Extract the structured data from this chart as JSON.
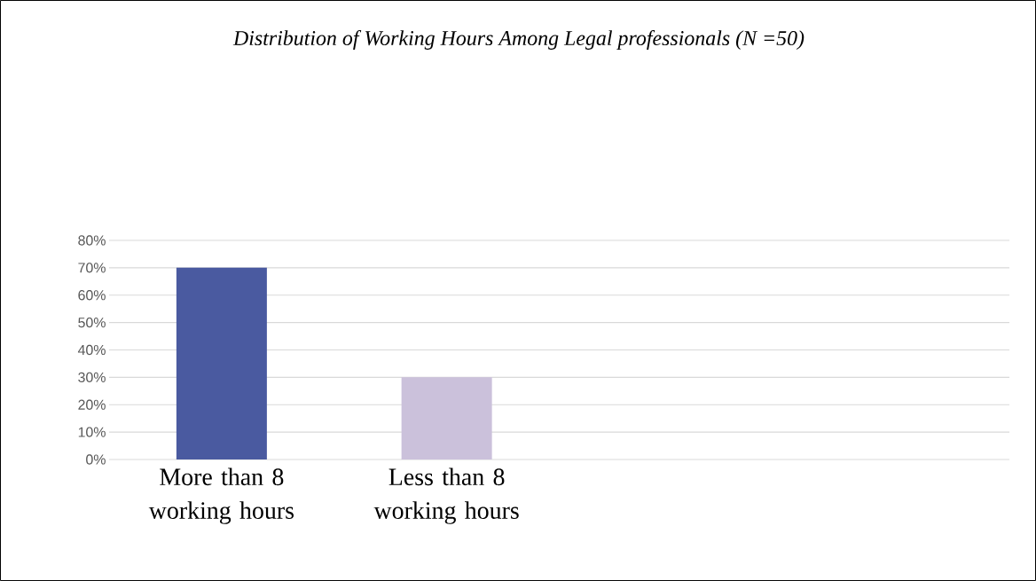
{
  "chart_data": {
    "type": "bar",
    "title": "Distribution of Working Hours Among Legal professionals (N =50)",
    "categories": [
      "More than 8 working hours",
      "Less than 8 working hours",
      null,
      null
    ],
    "values": [
      70,
      30,
      null,
      null
    ],
    "colors": [
      "#4a5aa0",
      "#cbc1db",
      "#4a5aa0",
      "#cbc1db"
    ],
    "ylim": [
      0,
      80
    ],
    "yticks": [
      {
        "value": 0,
        "label": "0%"
      },
      {
        "value": 10,
        "label": "10%"
      },
      {
        "value": 20,
        "label": "20%"
      },
      {
        "value": 30,
        "label": "30%"
      },
      {
        "value": 40,
        "label": "40%"
      },
      {
        "value": 50,
        "label": "50%"
      },
      {
        "value": 60,
        "label": "60%"
      },
      {
        "value": 70,
        "label": "70%"
      },
      {
        "value": 80,
        "label": "80%"
      }
    ],
    "grid": "y"
  }
}
